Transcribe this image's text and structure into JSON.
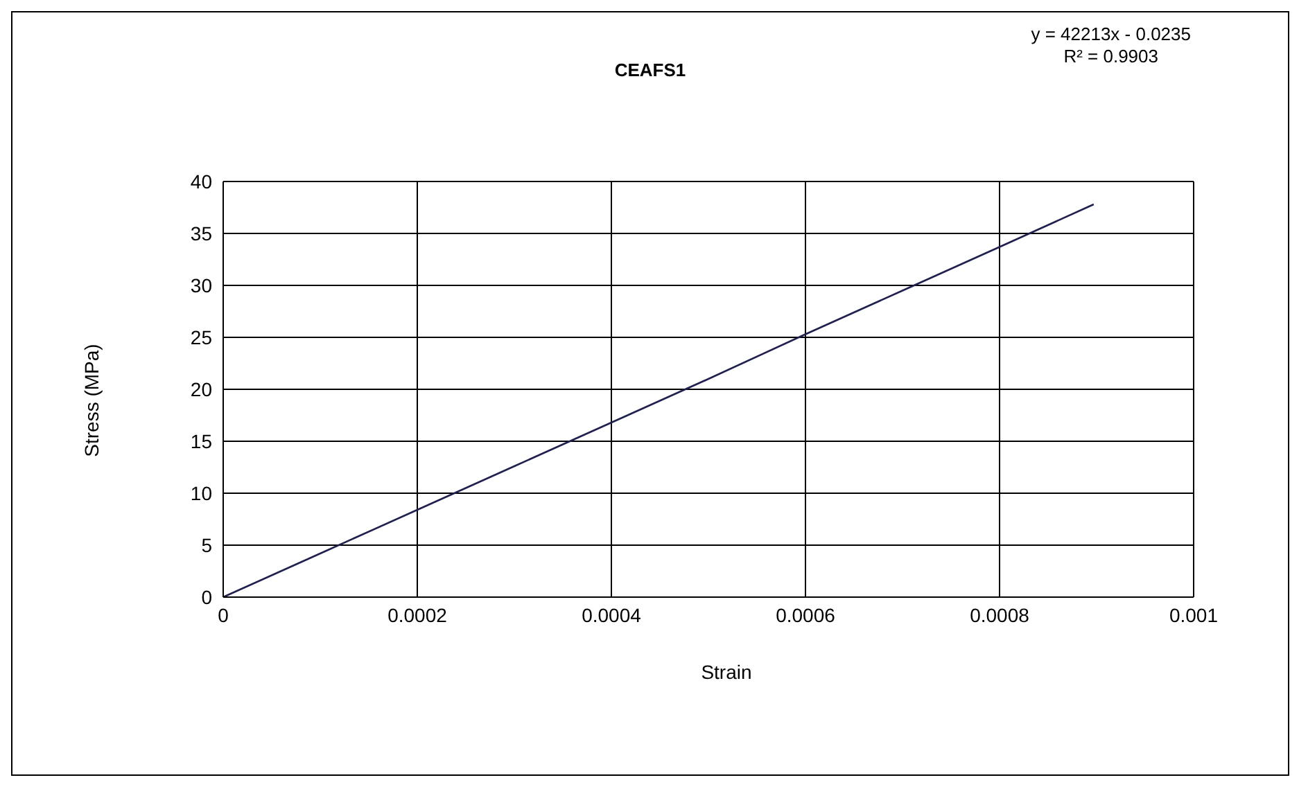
{
  "chart_data": {
    "type": "line",
    "title": "CEAFS1",
    "xlabel": "Strain",
    "ylabel": "Stress (MPa)",
    "annotations": [
      "y = 42213x  - 0.0235",
      "R² = 0.9903"
    ],
    "x": [
      0,
      0.0001,
      0.0002,
      0.0003,
      0.0004,
      0.0005,
      0.0006,
      0.0007,
      0.0008,
      0.000897
    ],
    "series": [
      {
        "color": "#202050",
        "values": [
          0,
          4.2,
          8.4,
          12.6,
          16.8,
          21.0,
          25.3,
          29.5,
          33.7,
          37.8
        ]
      }
    ],
    "xlim": [
      0,
      0.001
    ],
    "xticks": [
      0,
      0.0002,
      0.0004,
      0.0006,
      0.0008,
      0.001
    ],
    "ylim": [
      0,
      40
    ],
    "yticks": [
      0,
      5,
      10,
      15,
      20,
      25,
      30,
      35,
      40
    ],
    "grid": true,
    "legend": false,
    "marker": "none",
    "line_style": "solid"
  }
}
